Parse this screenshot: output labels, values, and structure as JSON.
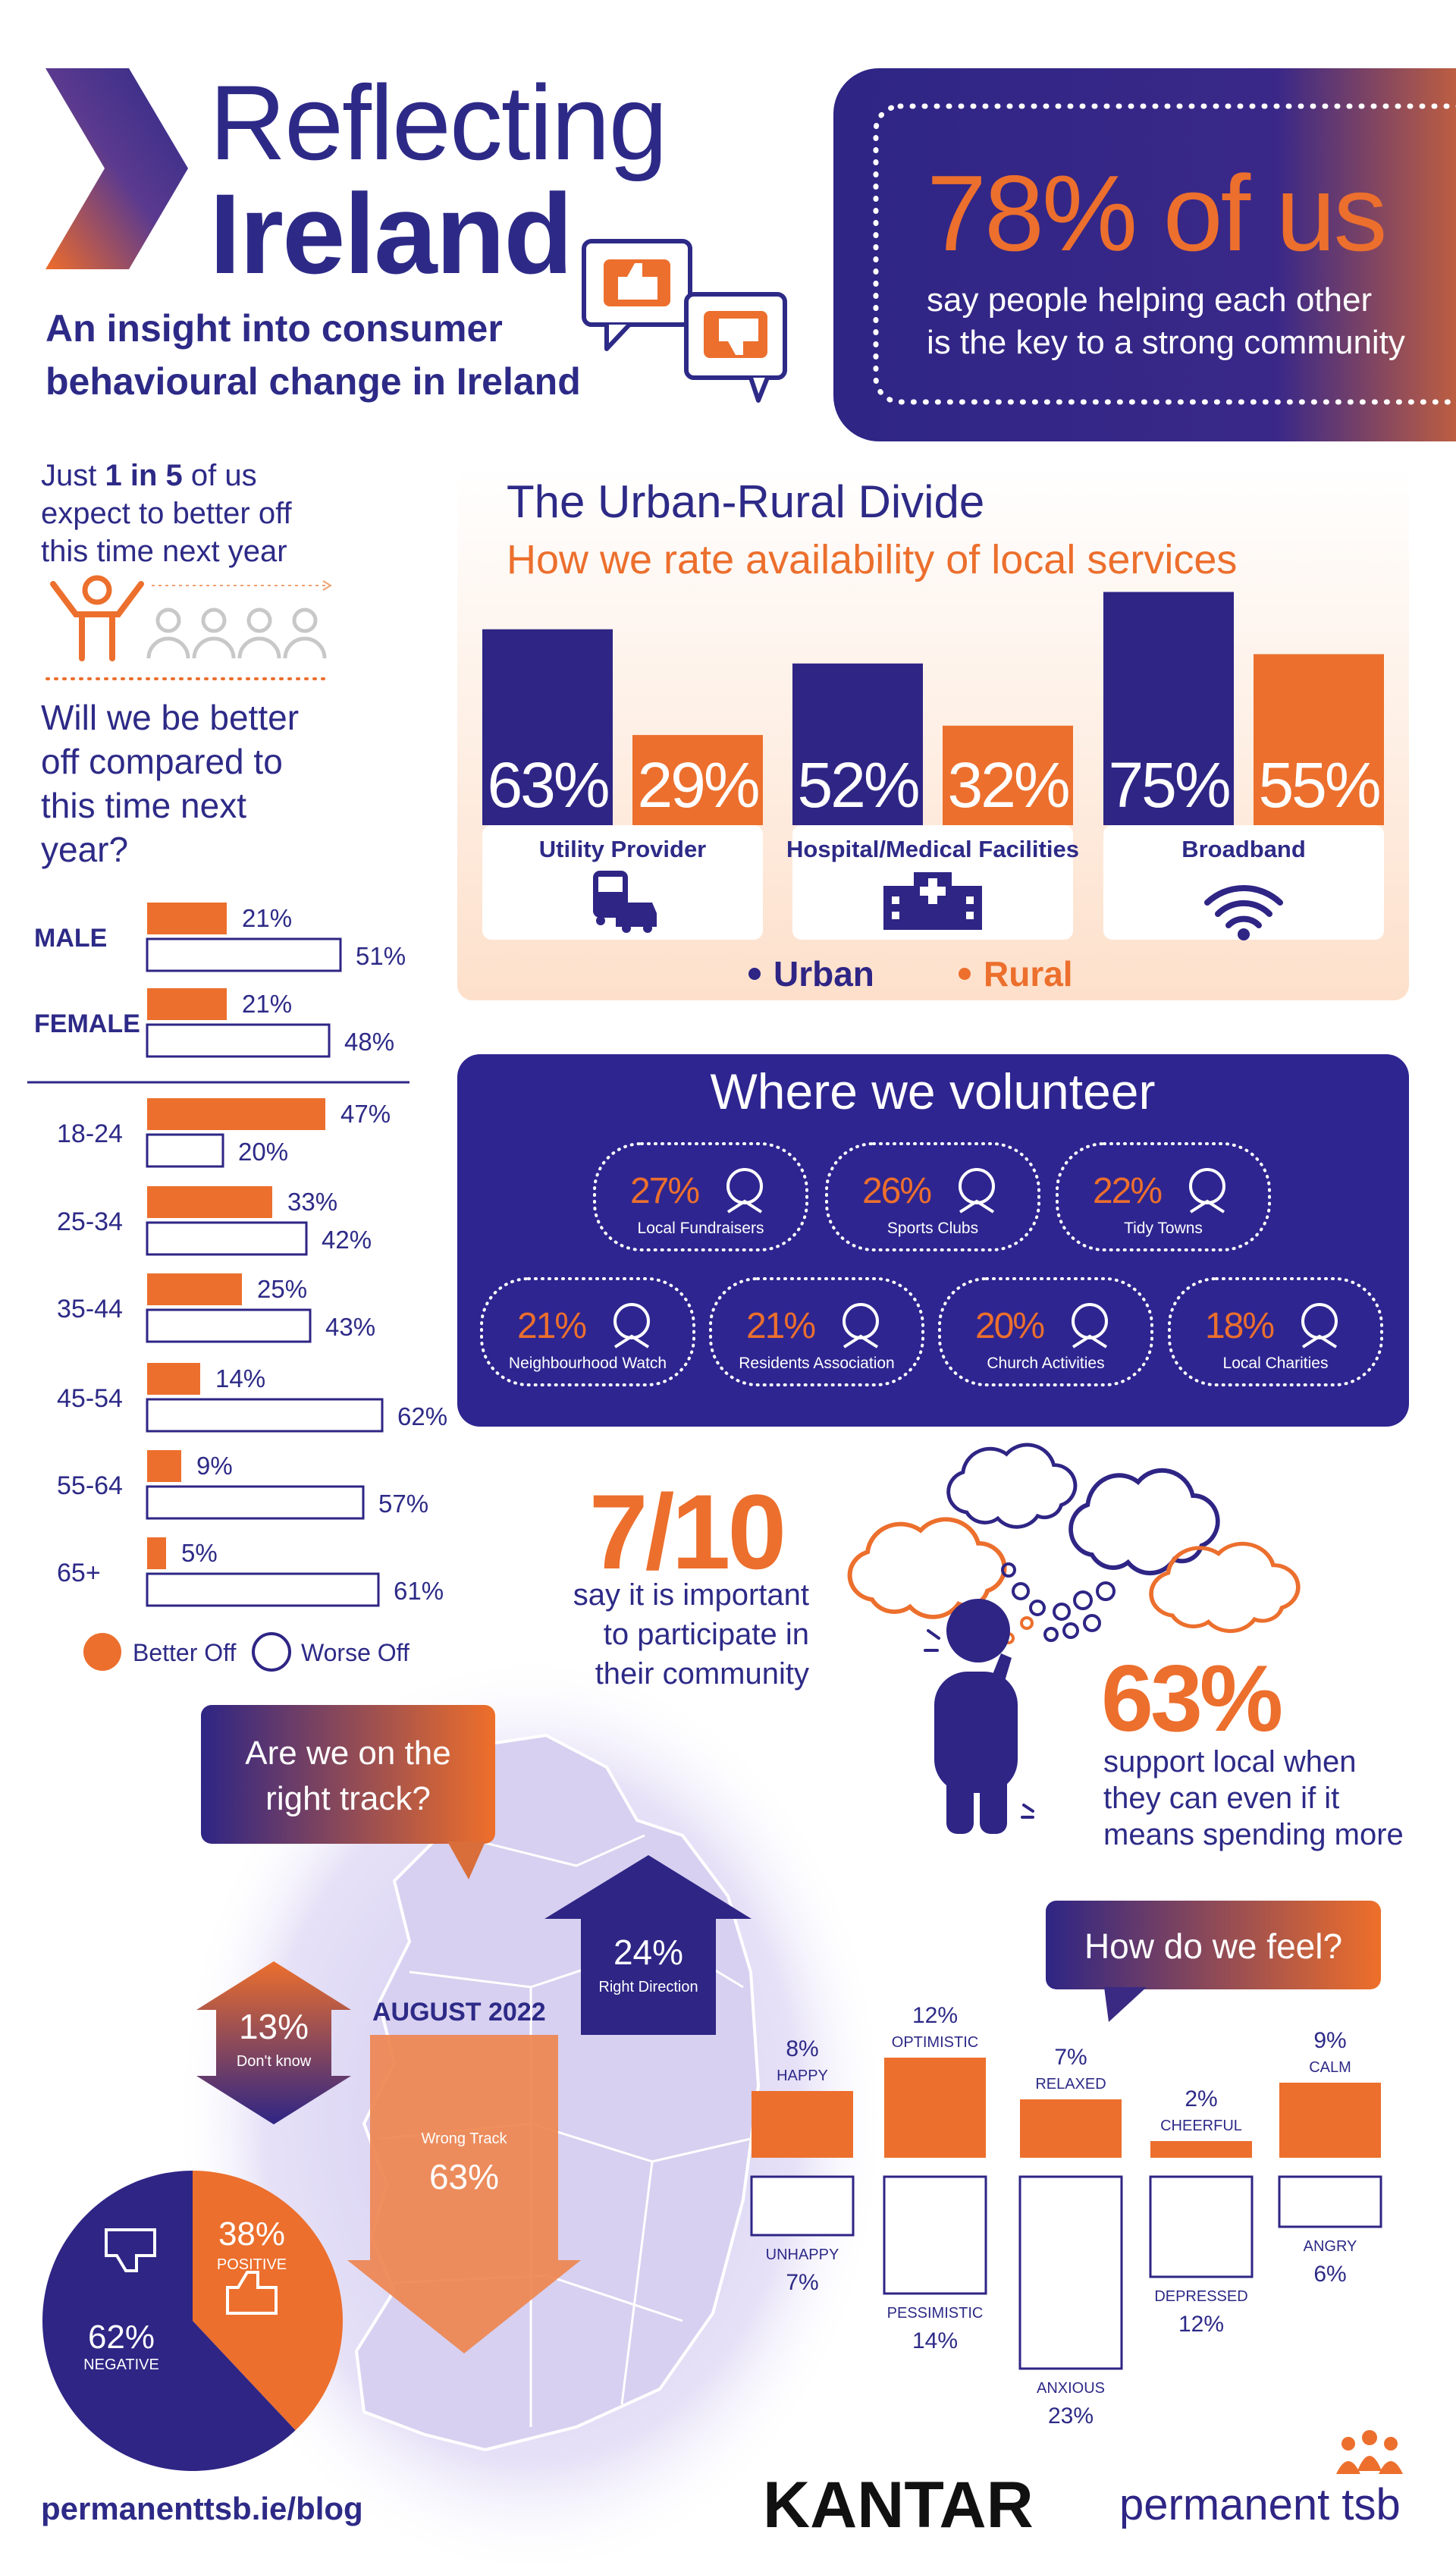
{
  "header": {
    "title_line1": "Reflecting",
    "title_line2": "Ireland",
    "subtitle_lines": [
      "An insight into consumer",
      "behavioural change in Ireland"
    ]
  },
  "highlight": {
    "headline": "78% of us",
    "text_lines": [
      "say people helping each other",
      "is the key to a strong community"
    ]
  },
  "expectation": {
    "line1_parts": [
      "Just ",
      "1 in 5",
      " of us"
    ],
    "other_lines": [
      "expect to better off",
      "this time next year"
    ]
  },
  "better_off_chart": {
    "question_lines": [
      "Will we be better",
      "off compared to",
      "this time next",
      "year?"
    ],
    "better_off_color": "#ec6f2d",
    "worse_off_color": "#ffffff",
    "gender_groups": [
      {
        "label": "MALE",
        "better_off": 21,
        "better_off_label": "21%",
        "worse_off": 51,
        "worse_off_label": "51%"
      },
      {
        "label": "FEMALE",
        "better_off": 21,
        "better_off_label": "21%",
        "worse_off": 48,
        "worse_off_label": "48%"
      }
    ],
    "age_groups": [
      {
        "label": "18-24",
        "better_off": 47,
        "better_off_label": "47%",
        "worse_off": 20,
        "worse_off_label": "20%"
      },
      {
        "label": "25-34",
        "better_off": 33,
        "better_off_label": "33%",
        "worse_off": 42,
        "worse_off_label": "42%"
      },
      {
        "label": "35-44",
        "better_off": 25,
        "better_off_label": "25%",
        "worse_off": 43,
        "worse_off_label": "43%"
      },
      {
        "label": "45-54",
        "better_off": 14,
        "better_off_label": "14%",
        "worse_off": 62,
        "worse_off_label": "62%"
      },
      {
        "label": "55-64",
        "better_off": 9,
        "better_off_label": "9%",
        "worse_off": 57,
        "worse_off_label": "57%"
      },
      {
        "label": "65+",
        "better_off": 5,
        "better_off_label": "5%",
        "worse_off": 61,
        "worse_off_label": "61%"
      }
    ],
    "legend": [
      "Better Off",
      "Worse Off"
    ]
  },
  "urban_rural": {
    "title": "The Urban-Rural Divide",
    "subtitle": "How we rate availability of local services",
    "urban_color": "#2e2585",
    "rural_color": "#ec6f2d",
    "services": [
      {
        "name": "Utility Provider",
        "urban": 63,
        "urban_label": "63%",
        "rural": 29,
        "rural_label": "29%"
      },
      {
        "name": "Hospital/Medical Facilities",
        "urban": 52,
        "urban_label": "52%",
        "rural": 32,
        "rural_label": "32%"
      },
      {
        "name": "Broadband",
        "urban": 75,
        "urban_label": "75%",
        "rural": 55,
        "rural_label": "55%"
      }
    ],
    "legend": [
      "Urban",
      "Rural"
    ]
  },
  "volunteer": {
    "title": "Where we volunteer",
    "items": [
      {
        "label": "27%",
        "name": "Local Fundraisers"
      },
      {
        "label": "26%",
        "name": "Sports Clubs"
      },
      {
        "label": "22%",
        "name": "Tidy Towns"
      },
      {
        "label": "21%",
        "name": "Neighbourhood Watch"
      },
      {
        "label": "21%",
        "name": "Residents Association"
      },
      {
        "label": "20%",
        "name": "Church Activities"
      },
      {
        "label": "18%",
        "name": "Local Charities"
      }
    ]
  },
  "participation": {
    "headline": "7/10",
    "text_lines": [
      "say it is important",
      "to participate in",
      "their community"
    ]
  },
  "support_local": {
    "headline": "63%",
    "text_lines": [
      "support local when",
      "they can even if it",
      "means spending more"
    ]
  },
  "right_track": {
    "question_lines": [
      "Are we on the",
      "right track?"
    ],
    "date": "AUGUST 2022",
    "right_direction": {
      "label": "24%",
      "name": "Right Direction"
    },
    "dont_know": {
      "label": "13%",
      "name": "Don't know"
    },
    "wrong_track": {
      "label": "63%",
      "name": "Wrong Track"
    }
  },
  "sentiment_pie": {
    "slices": [
      {
        "name": "POSITIVE",
        "value": 38,
        "label": "38%",
        "color": "#ec6f2d"
      },
      {
        "name": "NEGATIVE",
        "value": 62,
        "label": "62%",
        "color": "#2e2585"
      }
    ]
  },
  "feelings": {
    "title": "How do we feel?",
    "positive_color": "#ec6f2d",
    "negative_color": "#ffffff",
    "pairs": [
      {
        "positive": "HAPPY",
        "positive_value": 8,
        "positive_label": "8%",
        "negative": "UNHAPPY",
        "negative_value": 7,
        "negative_label": "7%"
      },
      {
        "positive": "OPTIMISTIC",
        "positive_value": 12,
        "positive_label": "12%",
        "negative": "PESSIMISTIC",
        "negative_value": 14,
        "negative_label": "14%"
      },
      {
        "positive": "RELAXED",
        "positive_value": 7,
        "positive_label": "7%",
        "negative": "ANXIOUS",
        "negative_value": 23,
        "negative_label": "23%"
      },
      {
        "positive": "CHEERFUL",
        "positive_value": 2,
        "positive_label": "2%",
        "negative": "DEPRESSED",
        "negative_value": 12,
        "negative_label": "12%"
      },
      {
        "positive": "CALM",
        "positive_value": 9,
        "positive_label": "9%",
        "negative": "ANGRY",
        "negative_value": 6,
        "negative_label": "6%"
      }
    ]
  },
  "footer": {
    "url": "permanenttsb.ie/blog",
    "partner": "KANTAR",
    "brand": "permanent tsb"
  }
}
